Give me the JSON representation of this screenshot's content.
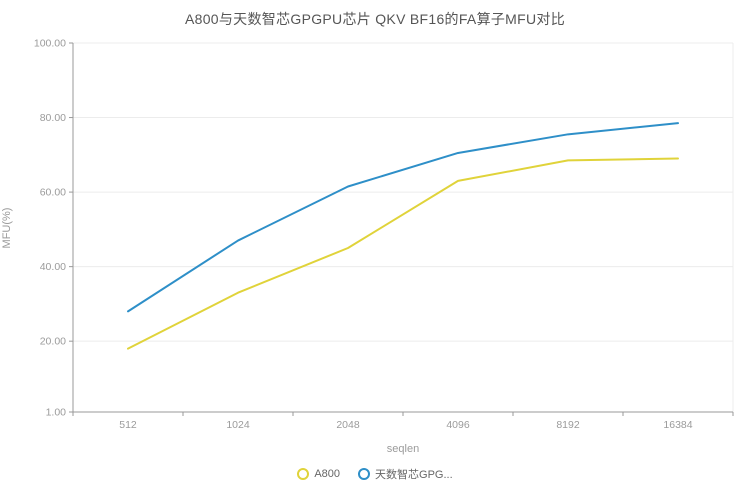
{
  "title": "A800与天数智芯GPGPU芯片 QKV BF16的FA算子MFU对比",
  "chart_data": {
    "type": "line",
    "title": "A800与天数智芯GPGPU芯片 QKV BF16的FA算子MFU对比",
    "xlabel": "seqlen",
    "ylabel": "MFU(%)",
    "categories": [
      "512",
      "1024",
      "2048",
      "4096",
      "8192",
      "16384"
    ],
    "series": [
      {
        "name": "A800",
        "legend_label": "A800",
        "color": "#e0d33a",
        "values": [
          18,
          33,
          45,
          63,
          68.5,
          69
        ]
      },
      {
        "name": "天数智芯GPG...",
        "legend_label": "天数智芯GPG...",
        "color": "#2e8fc8",
        "values": [
          28,
          47,
          61.5,
          70.5,
          75.5,
          78.5
        ]
      }
    ],
    "y_ticks": [
      {
        "value": 1,
        "label": "1.00"
      },
      {
        "value": 20,
        "label": "20.00"
      },
      {
        "value": 40,
        "label": "40.00"
      },
      {
        "value": 60,
        "label": "60.00"
      },
      {
        "value": 80,
        "label": "80.00"
      },
      {
        "value": 100,
        "label": "100.00"
      }
    ],
    "ylim": [
      1,
      100
    ],
    "grid": true,
    "legend_position": "bottom",
    "colors": {
      "axis_line": "#999999",
      "grid_line": "#ececec",
      "tick_label": "#9b9b9b",
      "title_text": "#555555"
    }
  }
}
